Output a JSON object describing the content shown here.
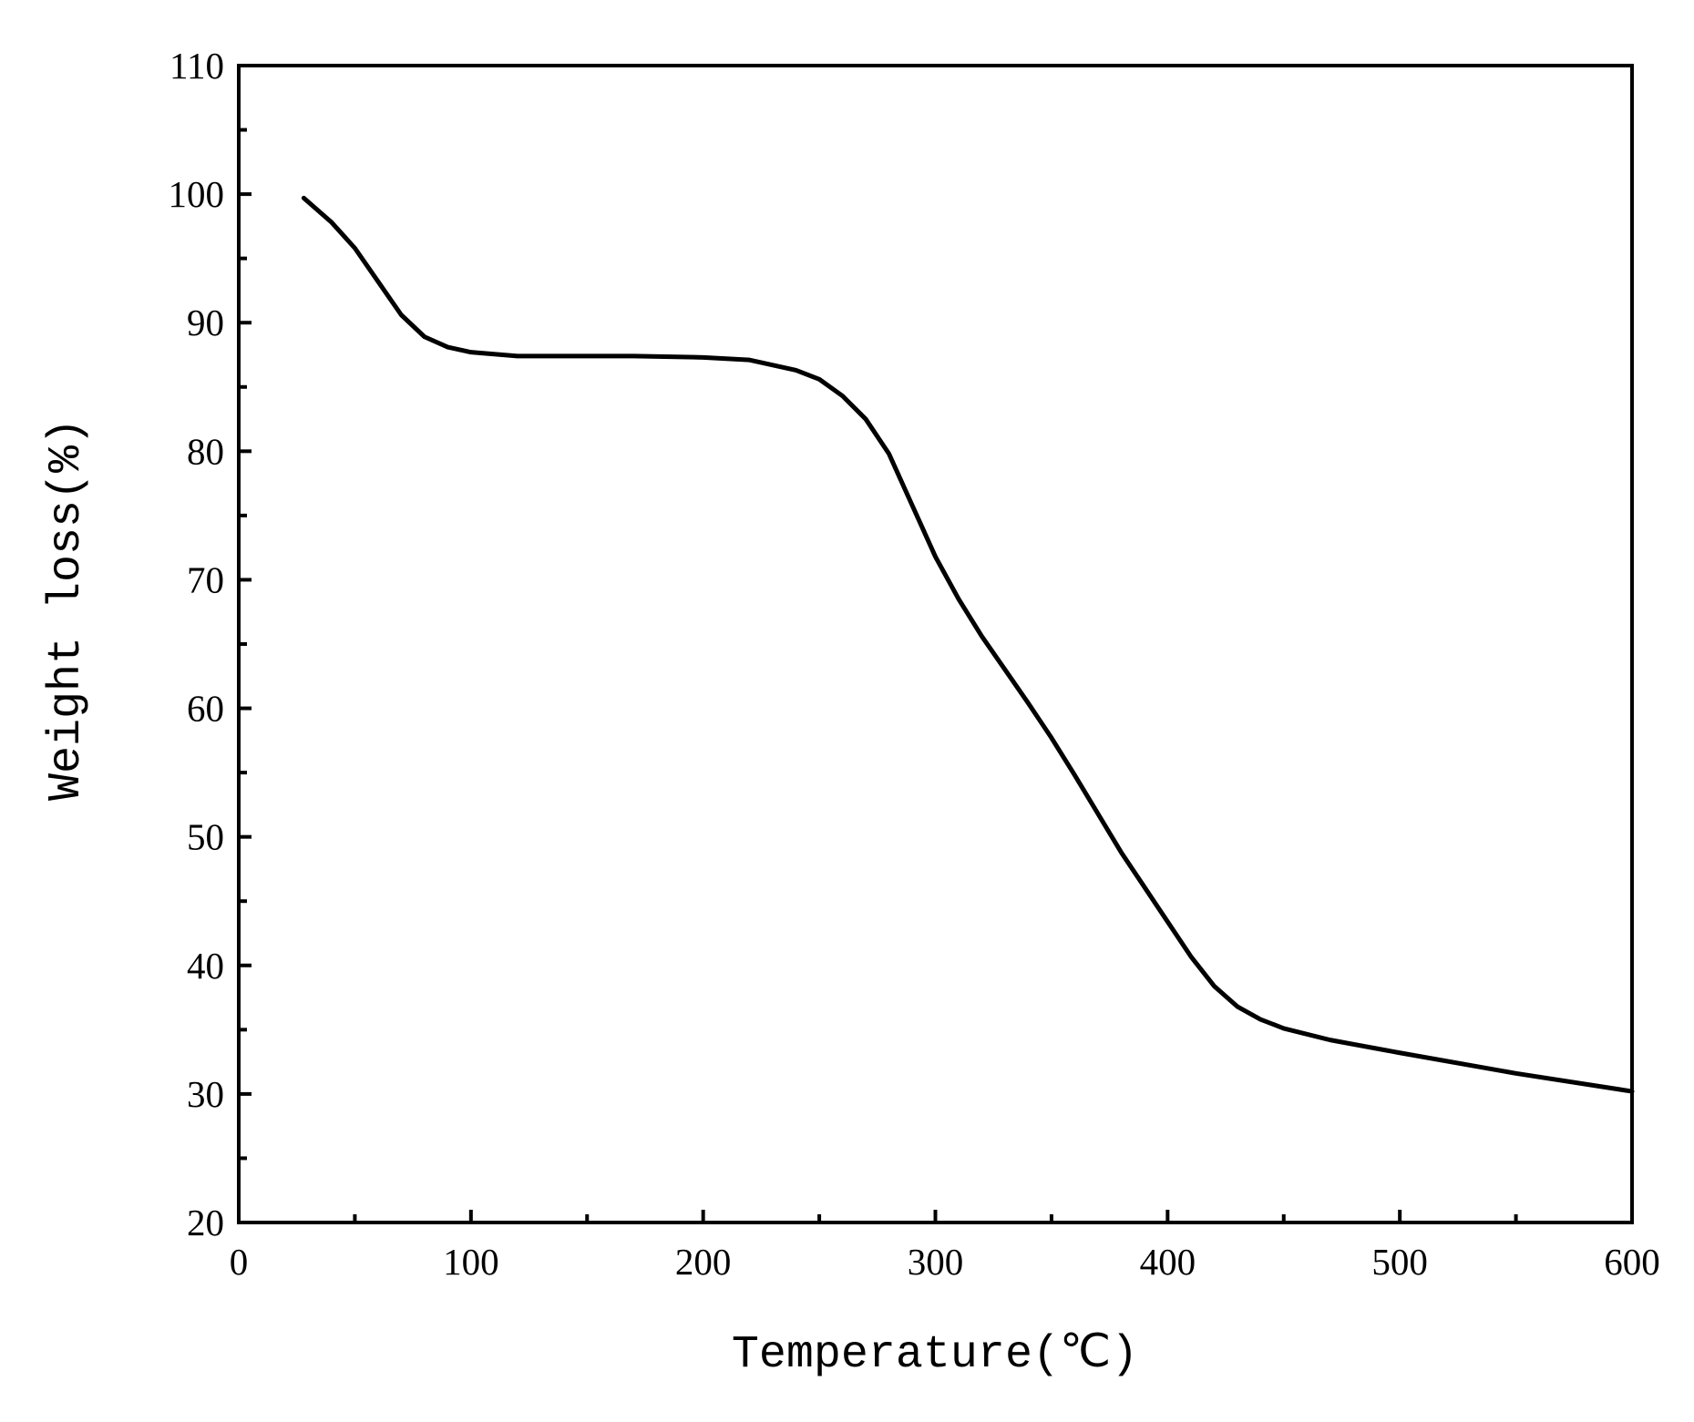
{
  "chart_data": {
    "type": "line",
    "xlabel": "Temperature(℃)",
    "ylabel": "Weight loss(%)",
    "x": [
      28,
      40,
      50,
      60,
      70,
      80,
      90,
      100,
      120,
      150,
      170,
      200,
      220,
      240,
      250,
      260,
      270,
      280,
      290,
      300,
      310,
      320,
      330,
      340,
      350,
      360,
      370,
      380,
      390,
      400,
      410,
      420,
      430,
      440,
      450,
      470,
      500,
      550,
      600
    ],
    "series": [
      {
        "color": "#000000",
        "values": [
          99.7,
          97.8,
          95.8,
          93.2,
          90.6,
          88.9,
          88.1,
          87.7,
          87.4,
          87.4,
          87.4,
          87.3,
          87.1,
          86.3,
          85.6,
          84.3,
          82.5,
          79.8,
          75.8,
          71.8,
          68.5,
          65.6,
          63.0,
          60.4,
          57.7,
          54.8,
          51.8,
          48.8,
          46.1,
          43.4,
          40.7,
          38.4,
          36.8,
          35.8,
          35.1,
          34.2,
          33.2,
          31.6,
          30.2
        ]
      }
    ],
    "xlim": [
      0,
      600
    ],
    "xticks": [
      0,
      100,
      200,
      300,
      400,
      500,
      600
    ],
    "xticks_minor": [
      50,
      150,
      250,
      350,
      450,
      550
    ],
    "ylim": [
      20,
      110
    ],
    "yticks": [
      20,
      30,
      40,
      50,
      60,
      70,
      80,
      90,
      100,
      110
    ],
    "yticks_minor": [
      25,
      35,
      45,
      55,
      65,
      75,
      85,
      95,
      105
    ],
    "grid": false
  }
}
